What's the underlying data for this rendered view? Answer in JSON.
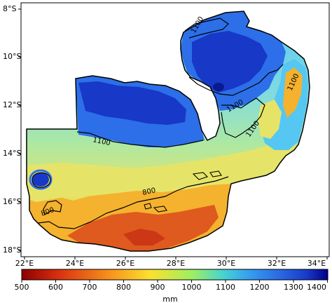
{
  "map": {
    "y_ticks": [
      "8°S",
      "10°S",
      "12°S",
      "14°S",
      "16°S",
      "18°S"
    ],
    "x_ticks": [
      "22°E",
      "24°E",
      "26°E",
      "28°E",
      "30°E",
      "32°E",
      "34°E"
    ],
    "contour_labels": [
      "1100",
      "1100",
      "1100",
      "1100",
      "1100",
      "800",
      "800"
    ],
    "region_colors": {
      "very_wet": "#1838c8",
      "wet": "#2c6fe8",
      "upper_mid": "#56c7f2",
      "middle": "#9ee4c0",
      "lower_mid": "#e6e468",
      "dry": "#f4b22e",
      "very_dry": "#df5a1e"
    }
  },
  "colorbar": {
    "ticks": [
      "500",
      "600",
      "700",
      "800",
      "900",
      "1000",
      "1100",
      "1200",
      "1300",
      "1400"
    ],
    "unit": "mm",
    "colors": [
      "#8b0000",
      "#d83010",
      "#f68d1c",
      "#fce12f",
      "#9bef63",
      "#45d3d2",
      "#36a0ef",
      "#2a6be3",
      "#1a3bc8",
      "#00008b"
    ]
  }
}
